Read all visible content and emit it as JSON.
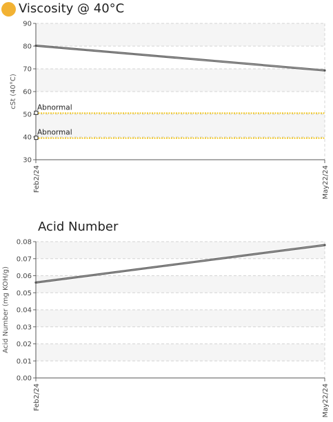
{
  "status_color": "#f2b233",
  "chart_data": [
    {
      "type": "line",
      "title": "Viscosity @ 40°C",
      "ylabel": "cSt (40°C)",
      "xlabel": "",
      "x": [
        "Feb2/24",
        "May22/24"
      ],
      "series": [
        {
          "values": [
            80.2,
            69.3
          ],
          "color": "#555555"
        }
      ],
      "ylim": [
        30,
        90
      ],
      "yticks": [
        30,
        40,
        50,
        60,
        70,
        80,
        90
      ],
      "grid": true,
      "reference_lines": [
        {
          "label": "Abnormal",
          "value": 50.5,
          "color": "#f0c419"
        },
        {
          "label": "Abnormal",
          "value": 39.5,
          "color": "#f0c419"
        }
      ]
    },
    {
      "type": "line",
      "title": "Acid Number",
      "ylabel": "Acid Number (mg KOH/g)",
      "xlabel": "",
      "x": [
        "Feb2/24",
        "May22/24"
      ],
      "series": [
        {
          "values": [
            0.056,
            0.078
          ],
          "color": "#555555"
        }
      ],
      "ylim": [
        0,
        0.08
      ],
      "yticks": [
        0.0,
        0.01,
        0.02,
        0.03,
        0.04,
        0.05,
        0.06,
        0.07,
        0.08
      ],
      "ytick_labels": [
        "0.00",
        "0.01",
        "0.02",
        "0.03",
        "0.04",
        "0.05",
        "0.06",
        "0.07",
        "0.08"
      ],
      "grid": true,
      "reference_lines": []
    }
  ]
}
